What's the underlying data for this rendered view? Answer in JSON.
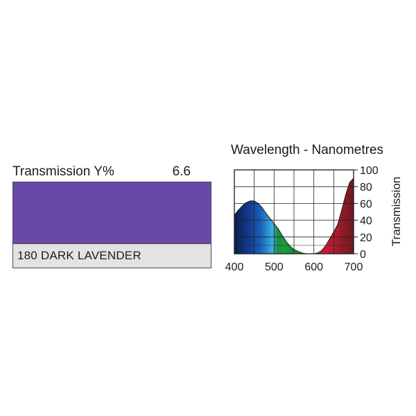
{
  "filter": {
    "transmission_label": "Transmission Y%",
    "transmission_value": "6.6",
    "name": "180 DARK LAVENDER",
    "swatch_color": "#6a48a8",
    "name_bar_color": "#e3e3e3"
  },
  "chart_data": {
    "type": "area",
    "title": "Wavelength - Nanometres",
    "xlabel": "",
    "ylabel": "Transmission",
    "xlim": [
      400,
      700
    ],
    "ylim": [
      0,
      100
    ],
    "x_ticks": [
      400,
      500,
      600,
      700
    ],
    "y_ticks": [
      0,
      20,
      40,
      60,
      80,
      100
    ],
    "grid": true,
    "series": [
      {
        "x": [
          400,
          410,
          420,
          430,
          440,
          450,
          460,
          470,
          480,
          490,
          500,
          510,
          520,
          530,
          540,
          550,
          560,
          570,
          580,
          590,
          600,
          610,
          620,
          630,
          640,
          650,
          660,
          670,
          680,
          690,
          700
        ],
        "y": [
          46,
          52,
          57,
          61,
          63,
          63,
          60,
          55,
          48,
          42,
          36,
          30,
          22,
          15,
          9,
          5,
          3,
          1,
          0,
          0,
          0,
          1,
          4,
          10,
          18,
          26,
          35,
          52,
          70,
          85,
          90
        ]
      }
    ]
  }
}
